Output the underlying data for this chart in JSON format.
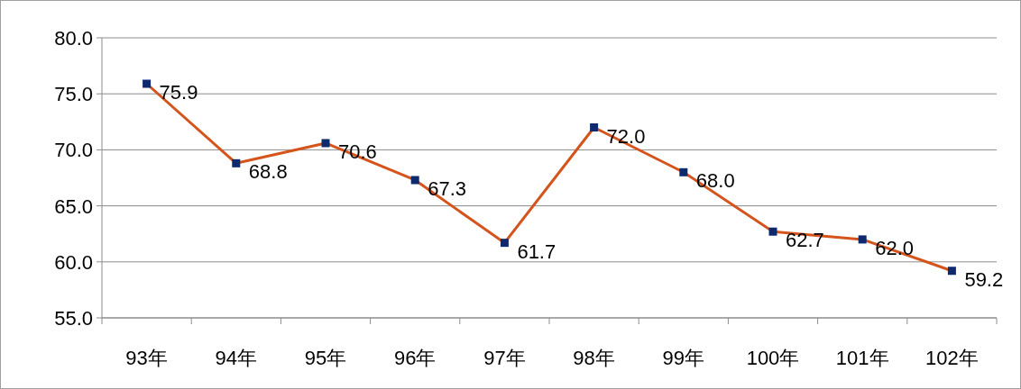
{
  "chart_data": {
    "type": "line",
    "categories": [
      "93年",
      "94年",
      "95年",
      "96年",
      "97年",
      "98年",
      "99年",
      "100年",
      "101年",
      "102年"
    ],
    "series": [
      {
        "color": "#d4541c",
        "values": [
          75.9,
          68.8,
          70.6,
          67.3,
          61.7,
          72.0,
          68.0,
          62.7,
          62.0,
          59.2
        ],
        "value_labels": [
          "75.9",
          "68.8",
          "70.6",
          "67.3",
          "61.7",
          "72.0",
          "68.0",
          "62.7",
          "62.0",
          "59.2"
        ]
      }
    ],
    "ylim": [
      55,
      80
    ],
    "yticks": [
      {
        "value": 55,
        "label": "55.0"
      },
      {
        "value": 60,
        "label": "60.0"
      },
      {
        "value": 65,
        "label": "65.0"
      },
      {
        "value": 70,
        "label": "70.0"
      },
      {
        "value": 75,
        "label": "75.0"
      },
      {
        "value": 80,
        "label": "80.0"
      }
    ],
    "grid": "y",
    "marker": "square",
    "line_style": "solid"
  }
}
